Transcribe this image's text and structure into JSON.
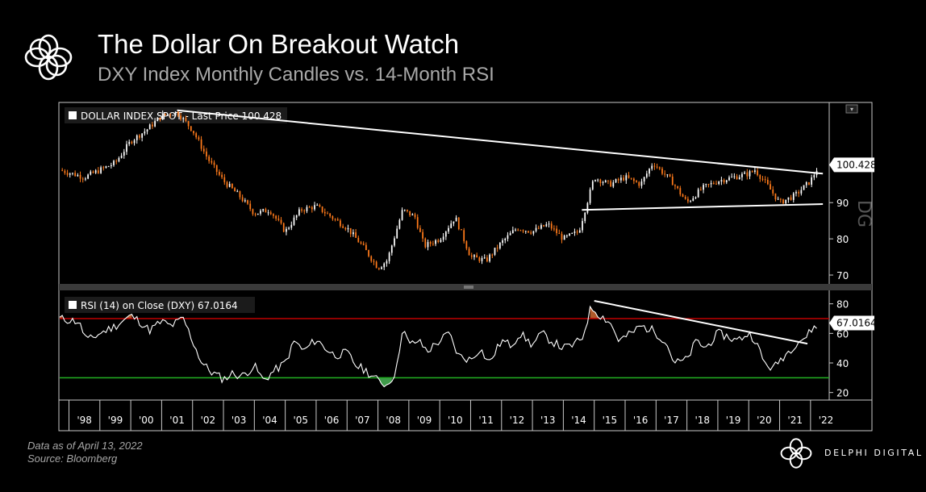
{
  "header": {
    "title": "The Dollar On Breakout Watch",
    "subtitle": "DXY Index Monthly Candles vs. 14-Month RSI"
  },
  "footer": {
    "data_note": "Data as of April 13, 2022",
    "source": "Source: Bloomberg",
    "brand": "DELPHI DIGITAL"
  },
  "colors": {
    "background": "#000000",
    "up_candle": "#ffffff",
    "down_candle": "#ff7a1a",
    "trendline": "#ffffff",
    "rsi_line": "#ffffff",
    "overbought_line": "#c00000",
    "oversold_line": "#22b022",
    "overbought_fill": "#b05a2a",
    "oversold_fill": "#3f9a4a"
  },
  "chart_data": [
    {
      "type": "candlestick",
      "legend": "DOLLAR INDEX SPOT - Last Price 100.428",
      "last_value_label": "100.428",
      "x_unit": "year",
      "xlim": [
        1997.7,
        2022.5
      ],
      "ylim": [
        68,
        117
      ],
      "y_ticks": [
        70,
        80,
        90
      ],
      "y_tick_labels": [
        "70",
        "80",
        "90"
      ],
      "grid": false,
      "series": [
        {
          "x": [
            1997.7,
            1998.5,
            1999.0,
            1999.5,
            2000.0,
            2000.5,
            2001.0,
            2001.5,
            2002.0,
            2002.5,
            2003.0,
            2003.5,
            2004.0,
            2004.5,
            2005.0,
            2005.5,
            2006.0,
            2006.5,
            2007.0,
            2007.5,
            2008.0,
            2008.3,
            2008.8,
            2009.2,
            2009.5,
            2010.0,
            2010.5,
            2011.0,
            2011.5,
            2012.0,
            2012.5,
            2013.0,
            2013.5,
            2014.0,
            2014.5,
            2015.0,
            2015.5,
            2016.0,
            2016.5,
            2016.9,
            2017.5,
            2018.0,
            2018.5,
            2019.0,
            2019.5,
            2020.0,
            2020.2,
            2020.5,
            2021.0,
            2021.5,
            2022.0,
            2022.28
          ],
          "y": [
            99,
            97,
            99,
            101,
            107,
            110,
            114,
            115,
            110,
            102,
            96,
            92,
            87,
            88,
            82,
            88,
            89,
            86,
            83,
            78,
            72,
            74,
            88,
            86,
            78,
            80,
            86,
            75,
            74,
            79,
            83,
            82,
            84,
            80,
            82,
            97,
            95,
            97,
            95,
            101,
            96,
            90,
            94,
            96,
            97,
            98,
            99,
            96,
            90,
            92,
            96,
            100.428
          ]
        }
      ],
      "trendlines": [
        {
          "name": "upper",
          "x": [
            2001.5,
            2022.4
          ],
          "y": [
            115.5,
            98
          ]
        },
        {
          "name": "lower",
          "x": [
            2014.6,
            2022.4
          ],
          "y": [
            88,
            89.6
          ]
        }
      ]
    },
    {
      "type": "line",
      "legend": "RSI (14) on Close (DXY) 67.0164",
      "last_value_label": "67.0164",
      "x_unit": "year",
      "xlim": [
        1997.7,
        2022.5
      ],
      "ylim": [
        16,
        88
      ],
      "y_ticks": [
        20,
        40,
        60,
        80
      ],
      "y_tick_labels": [
        "20",
        "40",
        "60",
        "80"
      ],
      "x_tick_labels": [
        "'98",
        "'99",
        "'00",
        "'01",
        "'02",
        "'03",
        "'04",
        "'05",
        "'06",
        "'07",
        "'08",
        "'09",
        "'10",
        "'11",
        "'12",
        "'13",
        "'14",
        "'15",
        "'16",
        "'17",
        "'18",
        "'19",
        "'20",
        "'21",
        "'22"
      ],
      "overbought": 70,
      "oversold": 30,
      "series": [
        {
          "x": [
            1997.7,
            1998.3,
            1998.6,
            1999.0,
            1999.5,
            2000.0,
            2000.3,
            2000.6,
            2001.0,
            2001.3,
            2001.7,
            2002.0,
            2002.3,
            2002.6,
            2003.0,
            2003.3,
            2003.6,
            2004.0,
            2004.3,
            2004.6,
            2005.0,
            2005.3,
            2005.6,
            2006.0,
            2006.3,
            2006.6,
            2007.0,
            2007.3,
            2007.6,
            2008.0,
            2008.3,
            2008.6,
            2008.8,
            2009.0,
            2009.3,
            2009.6,
            2010.0,
            2010.3,
            2010.6,
            2011.0,
            2011.3,
            2011.6,
            2012.0,
            2012.3,
            2012.6,
            2013.0,
            2013.3,
            2013.6,
            2014.0,
            2014.3,
            2014.6,
            2014.9,
            2015.2,
            2015.5,
            2015.8,
            2016.2,
            2016.5,
            2016.9,
            2017.3,
            2017.6,
            2018.0,
            2018.3,
            2018.6,
            2019.0,
            2019.3,
            2019.6,
            2020.0,
            2020.2,
            2020.5,
            2020.8,
            2021.0,
            2021.3,
            2021.6,
            2021.9,
            2022.0,
            2022.28
          ],
          "y": [
            70,
            68,
            55,
            60,
            65,
            72,
            68,
            62,
            68,
            65,
            70,
            55,
            40,
            34,
            29,
            33,
            31,
            38,
            28,
            34,
            40,
            55,
            48,
            56,
            50,
            45,
            47,
            38,
            35,
            28,
            25,
            35,
            65,
            52,
            55,
            48,
            55,
            60,
            45,
            42,
            50,
            40,
            55,
            52,
            60,
            52,
            60,
            55,
            50,
            52,
            56,
            78,
            72,
            68,
            55,
            60,
            65,
            62,
            55,
            40,
            42,
            55,
            50,
            60,
            58,
            55,
            60,
            56,
            40,
            36,
            42,
            48,
            55,
            58,
            62,
            67.0164
          ]
        }
      ],
      "trendlines": [
        {
          "name": "rsi-downtrend",
          "x": [
            2015.0,
            2021.9
          ],
          "y": [
            82,
            53
          ]
        }
      ]
    }
  ]
}
